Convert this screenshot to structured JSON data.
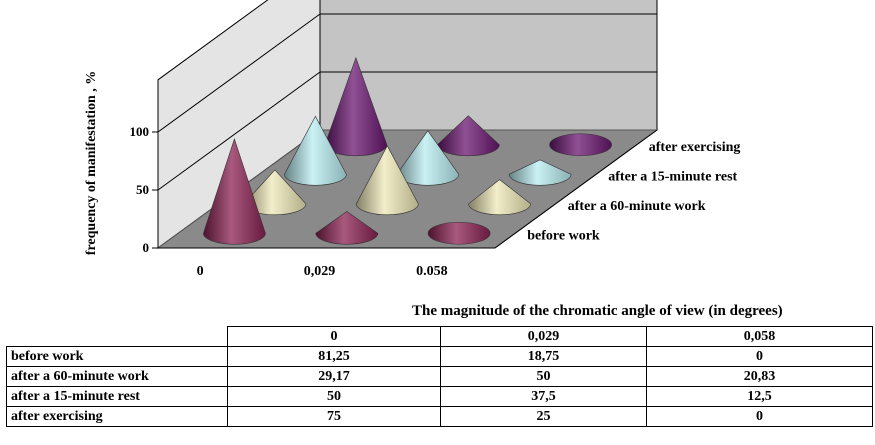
{
  "chart_data": {
    "type": "3d-cone",
    "ylabel": "frequency of manifestation  , %",
    "xlabel": "The magnitude of the chromatic angle of view (in degrees)",
    "categories": [
      "0",
      "0,029",
      "0.058"
    ],
    "yticks": [
      "100",
      "50",
      "0"
    ],
    "ylim": [
      0,
      100
    ],
    "grid": true,
    "series": [
      {
        "name": "before work",
        "values": [
          81.25,
          18.75,
          0
        ],
        "color": "#8b2252"
      },
      {
        "name": "after a 60-minute work",
        "values": [
          29.17,
          50,
          20.83
        ],
        "color": "#efe8b8"
      },
      {
        "name": "after a 15-minute rest",
        "values": [
          50,
          37.5,
          12.5
        ],
        "color": "#b8ecf0"
      },
      {
        "name": "after exercising",
        "values": [
          75,
          25,
          0
        ],
        "color": "#6a1570"
      }
    ]
  },
  "table": {
    "caption": "The magnitude of the chromatic angle of view (in degrees)",
    "columns": [
      "0",
      "0,029",
      "0,058"
    ],
    "rows": [
      {
        "label": "before work",
        "cells": [
          "81,25",
          "18,75",
          "0"
        ]
      },
      {
        "label": "after a 60-minute work",
        "cells": [
          "29,17",
          "50",
          "20,83"
        ]
      },
      {
        "label": "after a 15-minute rest",
        "cells": [
          "50",
          "37,5",
          "12,5"
        ]
      },
      {
        "label": "after exercising",
        "cells": [
          "75",
          "25",
          "0"
        ]
      }
    ]
  }
}
